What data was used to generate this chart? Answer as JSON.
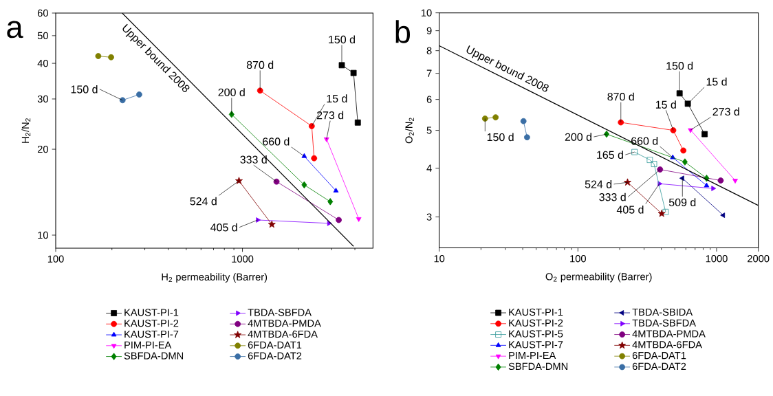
{
  "chart_data": [
    {
      "type": "line",
      "title": "a",
      "xlabel": "H$_{2}$ permeability (Barrer)",
      "ylabel": "H$_{2}$/N$_{2}$",
      "log": "xy",
      "legend": "bottom",
      "xlim": [
        100,
        5000
      ],
      "ylim": [
        9,
        60
      ],
      "xticks": [
        100,
        {
          "value": 200,
          "label": null
        },
        {
          "value": 300,
          "label": null
        },
        {
          "value": 400,
          "label": null
        },
        {
          "value": 500,
          "label": null
        },
        {
          "value": 600,
          "label": null
        },
        {
          "value": 700,
          "label": null
        },
        {
          "value": 800,
          "label": null
        },
        {
          "value": 900,
          "label": null
        },
        1000,
        {
          "value": 2000,
          "label": null
        },
        {
          "value": 3000,
          "label": null
        },
        {
          "value": 4000,
          "label": null
        }
      ],
      "yticks": [
        10,
        20,
        30,
        40,
        50,
        60
      ],
      "series": [
        {
          "name": "KAUST-PI-1",
          "color": "#000000",
          "marker": "square",
          "x": [
            3404,
            3936,
            4146
          ],
          "values": [
            39.4,
            37.0,
            24.8
          ]
        },
        {
          "name": "KAUST-PI-2",
          "color": "#ff0000",
          "marker": "circle",
          "x": [
            1243,
            2350,
            2420
          ],
          "values": [
            32.1,
            24.1,
            18.6
          ]
        },
        {
          "name": "KAUST-PI-7",
          "color": "#0000ff",
          "marker": "triangle",
          "x": [
            2142,
            3167
          ],
          "values": [
            18.9,
            14.3
          ]
        },
        {
          "name": "PIM-PI-EA",
          "color": "#ff00ff",
          "marker": "triangle-down",
          "x": [
            2820,
            4195
          ],
          "values": [
            21.7,
            11.4
          ]
        },
        {
          "name": "SBFDA-DMN",
          "color": "#008000",
          "marker": "diamond",
          "x": [
            875,
            2142,
            2953
          ],
          "values": [
            26.5,
            15.0,
            13.1
          ]
        },
        {
          "name": "TBDA-SBFDA",
          "color": "#8000ff",
          "marker": "triangle-right",
          "x": [
            1207,
            2903
          ],
          "values": [
            11.3,
            11.0
          ]
        },
        {
          "name": "4MTBDA-PMDA",
          "color": "#800080",
          "marker": "circle",
          "x": [
            1522,
            3279
          ],
          "values": [
            15.4,
            11.3
          ]
        },
        {
          "name": "4MTBDA-6FDA",
          "color": "#800000",
          "marker": "star",
          "x": [
            958,
            1437
          ],
          "values": [
            15.5,
            10.9
          ]
        },
        {
          "name": "6FDA-DAT1",
          "color": "#808000",
          "marker": "circle",
          "x": [
            169,
            198
          ],
          "values": [
            42.4,
            42.0
          ]
        },
        {
          "name": "6FDA-DAT2",
          "color": "#3a6ea5",
          "marker": "circle",
          "x": [
            228,
            280
          ],
          "values": [
            29.7,
            31.1
          ]
        },
        {
          "name": "Upper bound 2008",
          "color": "#000000",
          "marker": "none",
          "x": [
            227,
            3936
          ],
          "values": [
            60,
            9.14
          ]
        }
      ],
      "annotations": [
        {
          "text": "150 d",
          "x": 3404,
          "y": 39.4
        },
        {
          "text": "15 d",
          "x": 2350,
          "y": 24.1
        },
        {
          "text": "273 d",
          "x": 2820,
          "y": 21.7
        },
        {
          "text": "870 d",
          "x": 1243,
          "y": 32.1
        },
        {
          "text": "660 d",
          "x": 2142,
          "y": 18.9
        },
        {
          "text": "200 d",
          "x": 875,
          "y": 26.5
        },
        {
          "text": "333 d",
          "x": 1522,
          "y": 15.4
        },
        {
          "text": "524 d",
          "x": 958,
          "y": 15.5
        },
        {
          "text": "405 d",
          "x": 1207,
          "y": 11.3
        },
        {
          "text": "150 d",
          "x": 228,
          "y": 29.7
        }
      ]
    },
    {
      "type": "line",
      "title": "b",
      "xlabel": "O$_{2}$ permeability (Barrer)",
      "ylabel": "O$_{2}$/N$_{2}$",
      "log": "xy",
      "legend": "bottom",
      "xlim": [
        10,
        2000
      ],
      "ylim": [
        2.5,
        10
      ],
      "xticks": [
        10,
        {
          "value": 20,
          "label": null
        },
        {
          "value": 30,
          "label": null
        },
        {
          "value": 40,
          "label": null
        },
        {
          "value": 50,
          "label": null
        },
        {
          "value": 60,
          "label": null
        },
        {
          "value": 70,
          "label": null
        },
        {
          "value": 80,
          "label": null
        },
        {
          "value": 90,
          "label": null
        },
        100,
        {
          "value": 200,
          "label": null
        },
        {
          "value": 300,
          "label": null
        },
        {
          "value": 400,
          "label": null
        },
        {
          "value": 500,
          "label": null
        },
        {
          "value": 600,
          "label": null
        },
        {
          "value": 700,
          "label": null
        },
        {
          "value": 800,
          "label": null
        },
        {
          "value": 900,
          "label": null
        },
        1000,
        2000
      ],
      "yticks": [
        3,
        4,
        5,
        6,
        7,
        8,
        9,
        10
      ],
      "series": [
        {
          "name": "KAUST-PI-1",
          "color": "#000000",
          "marker": "square",
          "x": [
            541,
            620,
            820
          ],
          "values": [
            6.22,
            5.85,
            4.89
          ]
        },
        {
          "name": "KAUST-PI-2",
          "color": "#ff0000",
          "marker": "circle",
          "x": [
            204,
            487,
            576
          ],
          "values": [
            5.24,
            5.0,
            4.44
          ]
        },
        {
          "name": "KAUST-PI-5",
          "color": "#339999",
          "marker": "square-open",
          "x": [
            256,
            330,
            354,
            429
          ],
          "values": [
            4.4,
            4.2,
            4.1,
            3.09
          ]
        },
        {
          "name": "KAUST-PI-7",
          "color": "#0000ff",
          "marker": "triangle",
          "x": [
            483,
            847
          ],
          "values": [
            4.26,
            3.61
          ]
        },
        {
          "name": "PIM-PI-EA",
          "color": "#ff00ff",
          "marker": "triangle-down",
          "x": [
            649,
            1362
          ],
          "values": [
            5.01,
            3.72
          ]
        },
        {
          "name": "SBFDA-DMN",
          "color": "#008000",
          "marker": "diamond",
          "x": [
            161,
            591,
            847
          ],
          "values": [
            4.89,
            4.15,
            3.77
          ]
        },
        {
          "name": "TBDA-SBIDA",
          "color": "#000080",
          "marker": "triangle-left",
          "x": [
            567,
            1117
          ],
          "values": [
            3.77,
            3.03
          ]
        },
        {
          "name": "TBDA-SBFDA",
          "color": "#8000ff",
          "marker": "triangle-right",
          "x": [
            387,
            942
          ],
          "values": [
            3.65,
            3.55
          ]
        },
        {
          "name": "4MTBDA-PMDA",
          "color": "#800080",
          "marker": "circle",
          "x": [
            391,
            1070
          ],
          "values": [
            3.97,
            3.72
          ]
        },
        {
          "name": "4MTBDA-6FDA",
          "color": "#800000",
          "marker": "star",
          "x": [
            228,
            402
          ],
          "values": [
            3.68,
            3.06
          ]
        },
        {
          "name": "6FDA-DAT1",
          "color": "#808000",
          "marker": "circle",
          "x": [
            21.4,
            25.5
          ],
          "values": [
            5.36,
            5.4
          ]
        },
        {
          "name": "6FDA-DAT2",
          "color": "#3a6ea5",
          "marker": "circle",
          "x": [
            40.5,
            43.0
          ],
          "values": [
            5.28,
            4.8
          ]
        },
        {
          "name": "Upper bound 2008",
          "color": "#000000",
          "marker": "none",
          "x": [
            10,
            2000
          ],
          "values": [
            8.24,
            3.21
          ]
        }
      ],
      "annotations": [
        {
          "text": "150 d",
          "x": 541,
          "y": 6.22
        },
        {
          "text": "15 d",
          "x": 620,
          "y": 5.85
        },
        {
          "text": "273 d",
          "x": 649,
          "y": 5.01
        },
        {
          "text": "870 d",
          "x": 204,
          "y": 5.24
        },
        {
          "text": "15 d",
          "x": 487,
          "y": 5.0
        },
        {
          "text": "660 d",
          "x": 483,
          "y": 4.26
        },
        {
          "text": "200 d",
          "x": 161,
          "y": 4.89
        },
        {
          "text": "165 d",
          "x": 256,
          "y": 4.4
        },
        {
          "text": "524 d",
          "x": 228,
          "y": 3.68
        },
        {
          "text": "333 d",
          "x": 391,
          "y": 3.97
        },
        {
          "text": "405 d",
          "x": 387,
          "y": 3.65
        },
        {
          "text": "509 d",
          "x": 567,
          "y": 3.77
        },
        {
          "text": "150 d",
          "x": 21.4,
          "y": 5.36
        }
      ]
    }
  ]
}
